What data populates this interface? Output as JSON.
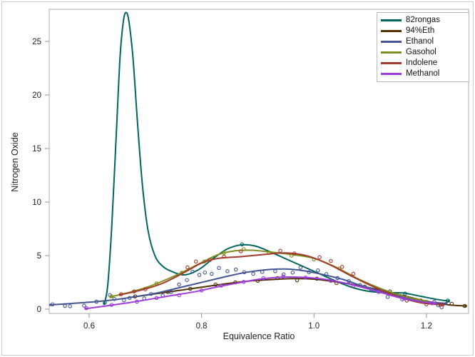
{
  "figure": {
    "background": "#FFFFFF",
    "border_color": "#C9CDD0",
    "frame_color": "#ABAFB3",
    "tick_color": "#8E9295",
    "text_color": "#1F1F1F"
  },
  "chart_data": {
    "type": "line",
    "title": "",
    "xlabel": "Equivalence Ratio",
    "ylabel": "Nitrogen Oxide",
    "xlim": [
      0.529,
      1.275
    ],
    "ylim": [
      -0.4,
      28.0
    ],
    "x_ticks": [
      0.6,
      0.8,
      1.0,
      1.2
    ],
    "x_tick_labels": [
      "0.6",
      "0.8",
      "1.0",
      "1.2"
    ],
    "y_ticks": [
      0,
      5,
      10,
      15,
      20,
      25
    ],
    "y_tick_labels": [
      "0",
      "5",
      "10",
      "15",
      "20",
      "25"
    ],
    "grid": false,
    "legend_position": "top-right-inside",
    "series": [
      {
        "name": "82rongas",
        "color": "#01665E",
        "curve": [
          [
            0.627,
            0.5
          ],
          [
            0.633,
            2.2
          ],
          [
            0.64,
            7.5
          ],
          [
            0.648,
            16.0
          ],
          [
            0.655,
            23.5
          ],
          [
            0.661,
            26.9
          ],
          [
            0.666,
            27.7
          ],
          [
            0.671,
            26.8
          ],
          [
            0.678,
            23.5
          ],
          [
            0.686,
            17.5
          ],
          [
            0.695,
            11.5
          ],
          [
            0.705,
            7.3
          ],
          [
            0.717,
            5.0
          ],
          [
            0.731,
            4.0
          ],
          [
            0.748,
            3.5
          ],
          [
            0.77,
            3.2
          ],
          [
            0.795,
            3.7
          ],
          [
            0.82,
            4.7
          ],
          [
            0.845,
            5.6
          ],
          [
            0.87,
            6.0
          ],
          [
            0.895,
            5.9
          ],
          [
            0.92,
            5.4
          ],
          [
            0.95,
            4.7
          ],
          [
            0.98,
            4.0
          ],
          [
            1.01,
            3.3
          ],
          [
            1.04,
            2.6
          ],
          [
            1.07,
            2.0
          ],
          [
            1.1,
            1.65
          ],
          [
            1.13,
            1.55
          ],
          [
            1.16,
            1.5
          ],
          [
            1.19,
            1.2
          ],
          [
            1.215,
            0.95
          ],
          [
            1.24,
            0.75
          ]
        ],
        "points": [
          [
            0.628,
            0.62
          ],
          [
            0.872,
            6.05
          ],
          [
            1.128,
            1.6
          ],
          [
            1.162,
            1.45
          ],
          [
            1.238,
            0.8
          ]
        ]
      },
      {
        "name": "94%Eth",
        "color": "#543005",
        "curve": [
          [
            0.68,
            1.15
          ],
          [
            0.72,
            1.45
          ],
          [
            0.76,
            1.75
          ],
          [
            0.8,
            2.05
          ],
          [
            0.84,
            2.35
          ],
          [
            0.88,
            2.6
          ],
          [
            0.92,
            2.75
          ],
          [
            0.96,
            2.85
          ],
          [
            1.0,
            2.8
          ],
          [
            1.04,
            2.55
          ],
          [
            1.08,
            2.2
          ],
          [
            1.12,
            1.75
          ],
          [
            1.16,
            1.25
          ],
          [
            1.2,
            0.75
          ],
          [
            1.24,
            0.4
          ],
          [
            1.27,
            0.3
          ]
        ],
        "points": [
          [
            0.682,
            1.2
          ],
          [
            0.74,
            1.6
          ],
          [
            0.78,
            1.9
          ],
          [
            0.825,
            2.3
          ],
          [
            0.86,
            2.5
          ],
          [
            0.9,
            2.65
          ],
          [
            0.935,
            2.9
          ],
          [
            0.97,
            2.7
          ],
          [
            1.005,
            2.85
          ],
          [
            1.04,
            2.45
          ],
          [
            1.09,
            2.1
          ],
          [
            1.135,
            1.65
          ],
          [
            1.19,
            0.8
          ],
          [
            1.245,
            0.5
          ],
          [
            1.268,
            0.3
          ]
        ]
      },
      {
        "name": "Ethanol",
        "color": "#445694",
        "curve": [
          [
            0.531,
            0.4
          ],
          [
            0.56,
            0.5
          ],
          [
            0.6,
            0.65
          ],
          [
            0.64,
            0.85
          ],
          [
            0.68,
            1.15
          ],
          [
            0.72,
            1.5
          ],
          [
            0.76,
            2.0
          ],
          [
            0.8,
            2.5
          ],
          [
            0.84,
            3.0
          ],
          [
            0.88,
            3.45
          ],
          [
            0.92,
            3.7
          ],
          [
            0.95,
            3.75
          ],
          [
            0.98,
            3.6
          ],
          [
            1.01,
            3.3
          ],
          [
            1.05,
            2.8
          ],
          [
            1.09,
            2.1
          ],
          [
            1.13,
            1.5
          ],
          [
            1.17,
            1.0
          ],
          [
            1.21,
            0.65
          ],
          [
            1.235,
            0.55
          ]
        ],
        "points": [
          [
            0.535,
            0.45
          ],
          [
            0.557,
            0.3
          ],
          [
            0.566,
            0.27
          ],
          [
            0.591,
            0.33
          ],
          [
            0.613,
            0.7
          ],
          [
            0.637,
            1.32
          ],
          [
            0.645,
            0.95
          ],
          [
            0.662,
            0.83
          ],
          [
            0.672,
            1.05
          ],
          [
            0.698,
            1.0
          ],
          [
            0.71,
            1.42
          ],
          [
            0.731,
            1.28
          ],
          [
            0.746,
            1.6
          ],
          [
            0.76,
            2.3
          ],
          [
            0.774,
            2.72
          ],
          [
            0.784,
            3.5
          ],
          [
            0.796,
            3.2
          ],
          [
            0.806,
            3.42
          ],
          [
            0.818,
            3.3
          ],
          [
            0.831,
            3.85
          ],
          [
            0.846,
            3.55
          ],
          [
            0.861,
            3.7
          ],
          [
            0.876,
            3.45
          ],
          [
            0.892,
            3.3
          ],
          [
            0.908,
            3.48
          ],
          [
            0.931,
            3.55
          ],
          [
            0.946,
            3.25
          ],
          [
            0.962,
            3.42
          ],
          [
            0.976,
            3.88
          ],
          [
            0.991,
            3.45
          ],
          [
            1.007,
            3.62
          ],
          [
            1.022,
            3.28
          ],
          [
            1.042,
            2.9
          ],
          [
            1.062,
            2.62
          ],
          [
            1.082,
            2.25
          ],
          [
            1.102,
            1.85
          ],
          [
            1.131,
            1.15
          ],
          [
            1.157,
            0.92
          ],
          [
            1.214,
            0.7
          ],
          [
            1.221,
            0.38
          ],
          [
            1.227,
            0.18
          ]
        ]
      },
      {
        "name": "Gasohol",
        "color": "#7F8E1F",
        "curve": [
          [
            0.638,
            1.15
          ],
          [
            0.67,
            1.55
          ],
          [
            0.7,
            2.0
          ],
          [
            0.73,
            2.6
          ],
          [
            0.76,
            3.3
          ],
          [
            0.8,
            4.35
          ],
          [
            0.83,
            5.1
          ],
          [
            0.86,
            5.45
          ],
          [
            0.89,
            5.5
          ],
          [
            0.92,
            5.35
          ],
          [
            0.96,
            5.1
          ],
          [
            1.0,
            4.75
          ],
          [
            1.04,
            3.9
          ],
          [
            1.08,
            2.8
          ],
          [
            1.12,
            1.9
          ],
          [
            1.16,
            1.2
          ],
          [
            1.2,
            0.75
          ]
        ],
        "points": [
          [
            0.64,
            1.2
          ],
          [
            0.72,
            2.4
          ],
          [
            0.765,
            3.4
          ],
          [
            0.805,
            4.45
          ],
          [
            0.84,
            5.25
          ],
          [
            0.875,
            5.6
          ],
          [
            0.92,
            5.25
          ],
          [
            0.96,
            5.0
          ],
          [
            1.0,
            4.65
          ],
          [
            1.045,
            3.8
          ]
        ]
      },
      {
        "name": "Indolene",
        "color": "#A23A2E",
        "curve": [
          [
            0.655,
            1.35
          ],
          [
            0.69,
            1.75
          ],
          [
            0.73,
            2.4
          ],
          [
            0.77,
            3.45
          ],
          [
            0.8,
            4.3
          ],
          [
            0.83,
            4.75
          ],
          [
            0.87,
            4.9
          ],
          [
            0.91,
            5.1
          ],
          [
            0.95,
            5.25
          ],
          [
            0.99,
            4.95
          ],
          [
            1.03,
            4.1
          ],
          [
            1.07,
            3.0
          ],
          [
            1.11,
            2.0
          ],
          [
            1.15,
            1.15
          ],
          [
            1.19,
            0.6
          ],
          [
            1.23,
            0.4
          ]
        ],
        "points": [
          [
            0.657,
            1.4
          ],
          [
            0.68,
            1.65
          ],
          [
            0.7,
            1.85
          ],
          [
            0.775,
            3.9
          ],
          [
            0.79,
            4.45
          ],
          [
            0.815,
            4.6
          ],
          [
            0.84,
            4.9
          ],
          [
            0.87,
            5.4
          ],
          [
            0.94,
            5.45
          ],
          [
            0.965,
            5.2
          ],
          [
            1.01,
            4.85
          ],
          [
            1.03,
            4.5
          ],
          [
            1.05,
            3.95
          ],
          [
            1.07,
            3.3
          ],
          [
            1.12,
            1.65
          ],
          [
            1.165,
            0.8
          ],
          [
            1.2,
            0.45
          ],
          [
            1.225,
            0.4
          ]
        ]
      },
      {
        "name": "Methanol",
        "color": "#9D3CDB",
        "curve": [
          [
            0.594,
            0.05
          ],
          [
            0.63,
            0.3
          ],
          [
            0.67,
            0.6
          ],
          [
            0.71,
            0.95
          ],
          [
            0.75,
            1.3
          ],
          [
            0.79,
            1.65
          ],
          [
            0.83,
            2.1
          ],
          [
            0.87,
            2.5
          ],
          [
            0.91,
            2.85
          ],
          [
            0.95,
            3.0
          ],
          [
            0.99,
            2.95
          ],
          [
            1.03,
            2.7
          ],
          [
            1.07,
            2.25
          ],
          [
            1.11,
            1.7
          ],
          [
            1.15,
            1.1
          ],
          [
            1.19,
            0.7
          ],
          [
            1.216,
            0.55
          ]
        ],
        "points": [
          [
            0.595,
            0.1
          ],
          [
            0.64,
            0.4
          ],
          [
            0.685,
            0.7
          ],
          [
            0.72,
            1.05
          ],
          [
            0.76,
            1.3
          ],
          [
            0.8,
            1.75
          ],
          [
            0.835,
            2.2
          ],
          [
            0.875,
            2.55
          ],
          [
            0.91,
            2.9
          ],
          [
            0.945,
            3.05
          ],
          [
            0.985,
            2.95
          ],
          [
            1.03,
            2.65
          ],
          [
            1.07,
            2.2
          ],
          [
            1.115,
            1.6
          ],
          [
            1.16,
            1.0
          ],
          [
            1.21,
            0.55
          ]
        ]
      }
    ]
  },
  "legend": {
    "entries": [
      "82rongas",
      "94%Eth",
      "Ethanol",
      "Gasohol",
      "Indolene",
      "Methanol"
    ]
  }
}
